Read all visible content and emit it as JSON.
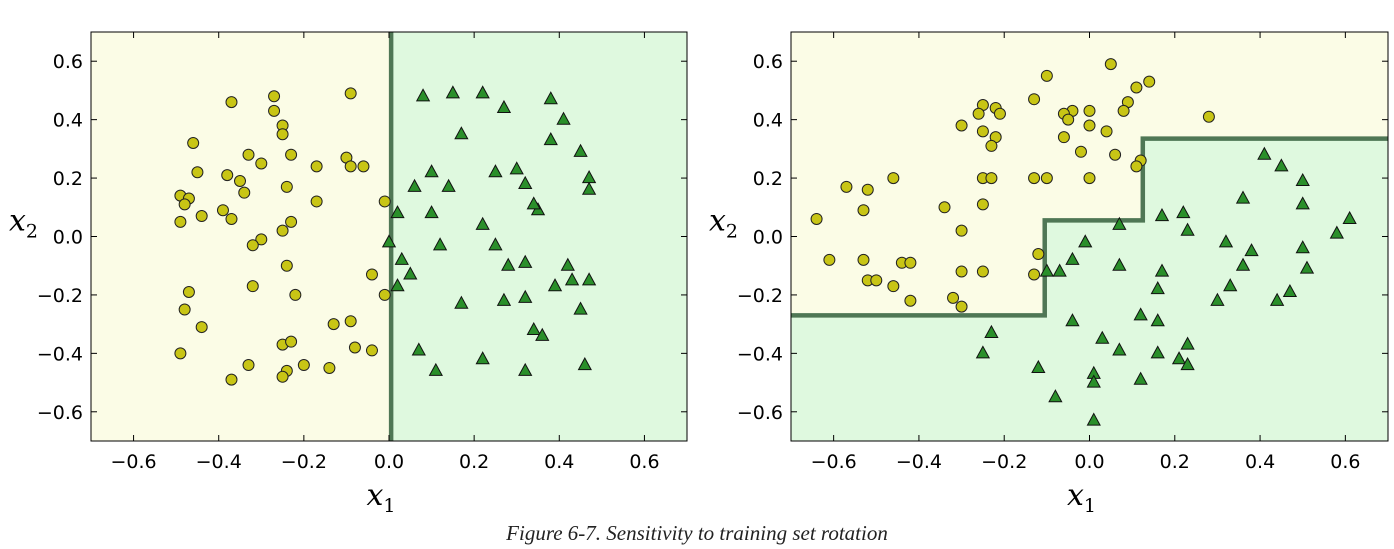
{
  "caption": "Figure 6-7. Sensitivity to training set rotation",
  "chart_data": [
    {
      "type": "scatter",
      "xlabel": "x1",
      "ylabel": "x2",
      "xlim": [
        -0.7,
        0.7
      ],
      "ylim": [
        -0.7,
        0.7
      ],
      "xticks": [
        "−0.6",
        "−0.4",
        "−0.2",
        "0.0",
        "0.2",
        "0.4",
        "0.6"
      ],
      "xtick_values": [
        -0.6,
        -0.4,
        -0.2,
        0.0,
        0.2,
        0.4,
        0.6
      ],
      "yticks": [
        "−0.6",
        "−0.4",
        "−0.2",
        "0.0",
        "0.2",
        "0.4",
        "0.6"
      ],
      "ytick_values": [
        -0.6,
        -0.4,
        -0.2,
        0.0,
        0.2,
        0.4,
        0.6
      ],
      "grid": false,
      "colors": {
        "region_a": "#fbfce6",
        "region_b": "#dff9df",
        "boundary": "#4f7755",
        "circle": "#c8c515",
        "triangle": "#2a8f2a"
      },
      "decision_boundary": [
        [
          0.005,
          -0.7
        ],
        [
          0.005,
          0.7
        ]
      ],
      "series": [
        {
          "marker": "circle",
          "points": [
            [
              -0.37,
              0.46
            ],
            [
              -0.27,
              0.48
            ],
            [
              -0.27,
              0.43
            ],
            [
              -0.09,
              0.49
            ],
            [
              -0.25,
              0.38
            ],
            [
              -0.25,
              0.35
            ],
            [
              -0.46,
              0.32
            ],
            [
              -0.33,
              0.28
            ],
            [
              -0.23,
              0.28
            ],
            [
              -0.1,
              0.27
            ],
            [
              -0.3,
              0.25
            ],
            [
              -0.17,
              0.24
            ],
            [
              -0.09,
              0.24
            ],
            [
              -0.06,
              0.24
            ],
            [
              -0.45,
              0.22
            ],
            [
              -0.38,
              0.21
            ],
            [
              -0.35,
              0.19
            ],
            [
              -0.24,
              0.17
            ],
            [
              -0.34,
              0.15
            ],
            [
              -0.49,
              0.14
            ],
            [
              -0.47,
              0.13
            ],
            [
              -0.48,
              0.11
            ],
            [
              -0.17,
              0.12
            ],
            [
              -0.01,
              0.12
            ],
            [
              -0.39,
              0.09
            ],
            [
              -0.44,
              0.07
            ],
            [
              -0.37,
              0.06
            ],
            [
              -0.49,
              0.05
            ],
            [
              -0.23,
              0.05
            ],
            [
              -0.25,
              0.02
            ],
            [
              -0.3,
              -0.01
            ],
            [
              -0.32,
              -0.03
            ],
            [
              -0.24,
              -0.1
            ],
            [
              -0.04,
              -0.13
            ],
            [
              -0.32,
              -0.17
            ],
            [
              -0.47,
              -0.19
            ],
            [
              -0.22,
              -0.2
            ],
            [
              -0.01,
              -0.2
            ],
            [
              -0.48,
              -0.25
            ],
            [
              -0.44,
              -0.31
            ],
            [
              -0.13,
              -0.3
            ],
            [
              -0.09,
              -0.29
            ],
            [
              -0.25,
              -0.37
            ],
            [
              -0.23,
              -0.36
            ],
            [
              -0.08,
              -0.38
            ],
            [
              -0.04,
              -0.39
            ],
            [
              -0.49,
              -0.4
            ],
            [
              -0.33,
              -0.44
            ],
            [
              -0.2,
              -0.44
            ],
            [
              -0.14,
              -0.45
            ],
            [
              -0.24,
              -0.46
            ],
            [
              -0.25,
              -0.48
            ],
            [
              -0.37,
              -0.49
            ]
          ]
        },
        {
          "marker": "triangle",
          "points": [
            [
              0.08,
              0.48
            ],
            [
              0.15,
              0.49
            ],
            [
              0.22,
              0.49
            ],
            [
              0.27,
              0.44
            ],
            [
              0.38,
              0.47
            ],
            [
              0.17,
              0.35
            ],
            [
              0.38,
              0.33
            ],
            [
              0.41,
              0.4
            ],
            [
              0.45,
              0.29
            ],
            [
              0.3,
              0.23
            ],
            [
              0.25,
              0.22
            ],
            [
              0.1,
              0.22
            ],
            [
              0.14,
              0.17
            ],
            [
              0.06,
              0.17
            ],
            [
              0.32,
              0.18
            ],
            [
              0.47,
              0.2
            ],
            [
              0.47,
              0.16
            ],
            [
              0.35,
              0.09
            ],
            [
              0.34,
              0.11
            ],
            [
              0.02,
              0.08
            ],
            [
              0.1,
              0.08
            ],
            [
              0.22,
              0.04
            ],
            [
              0.0,
              -0.02
            ],
            [
              0.12,
              -0.03
            ],
            [
              0.25,
              -0.03
            ],
            [
              0.03,
              -0.08
            ],
            [
              0.05,
              -0.13
            ],
            [
              0.02,
              -0.17
            ],
            [
              0.28,
              -0.1
            ],
            [
              0.32,
              -0.09
            ],
            [
              0.42,
              -0.1
            ],
            [
              0.43,
              -0.15
            ],
            [
              0.47,
              -0.15
            ],
            [
              0.39,
              -0.17
            ],
            [
              0.27,
              -0.22
            ],
            [
              0.32,
              -0.21
            ],
            [
              0.17,
              -0.23
            ],
            [
              0.45,
              -0.25
            ],
            [
              0.34,
              -0.32
            ],
            [
              0.36,
              -0.34
            ],
            [
              0.07,
              -0.39
            ],
            [
              0.22,
              -0.42
            ],
            [
              0.46,
              -0.44
            ],
            [
              0.11,
              -0.46
            ],
            [
              0.32,
              -0.46
            ]
          ]
        }
      ]
    },
    {
      "type": "scatter",
      "xlabel": "x1",
      "ylabel": "x2",
      "xlim": [
        -0.7,
        0.7
      ],
      "ylim": [
        -0.7,
        0.7
      ],
      "xticks": [
        "−0.6",
        "−0.4",
        "−0.2",
        "0.0",
        "0.2",
        "0.4",
        "0.6"
      ],
      "xtick_values": [
        -0.6,
        -0.4,
        -0.2,
        0.0,
        0.2,
        0.4,
        0.6
      ],
      "yticks": [
        "−0.6",
        "−0.4",
        "−0.2",
        "0.0",
        "0.2",
        "0.4",
        "0.6"
      ],
      "ytick_values": [
        -0.6,
        -0.4,
        -0.2,
        0.0,
        0.2,
        0.4,
        0.6
      ],
      "grid": false,
      "colors": {
        "region_a": "#fbfce6",
        "region_b": "#dff9df",
        "boundary": "#4f7755",
        "circle": "#c8c515",
        "triangle": "#2a8f2a"
      },
      "decision_boundary": [
        [
          -0.7,
          -0.27
        ],
        [
          -0.105,
          -0.27
        ],
        [
          -0.105,
          0.055
        ],
        [
          0.125,
          0.055
        ],
        [
          0.125,
          0.335
        ],
        [
          0.7,
          0.335
        ]
      ],
      "series": [
        {
          "marker": "circle",
          "points": [
            [
              0.05,
              0.59
            ],
            [
              -0.1,
              0.55
            ],
            [
              0.14,
              0.53
            ],
            [
              0.11,
              0.51
            ],
            [
              -0.25,
              0.45
            ],
            [
              0.09,
              0.46
            ],
            [
              -0.22,
              0.44
            ],
            [
              -0.26,
              0.42
            ],
            [
              -0.21,
              0.42
            ],
            [
              -0.13,
              0.47
            ],
            [
              -0.04,
              0.43
            ],
            [
              -0.06,
              0.42
            ],
            [
              -0.05,
              0.4
            ],
            [
              0.0,
              0.43
            ],
            [
              0.08,
              0.43
            ],
            [
              0.28,
              0.41
            ],
            [
              -0.3,
              0.38
            ],
            [
              -0.25,
              0.36
            ],
            [
              0.0,
              0.38
            ],
            [
              -0.06,
              0.34
            ],
            [
              -0.22,
              0.34
            ],
            [
              0.04,
              0.36
            ],
            [
              -0.23,
              0.31
            ],
            [
              -0.02,
              0.29
            ],
            [
              0.06,
              0.28
            ],
            [
              0.12,
              0.26
            ],
            [
              0.11,
              0.24
            ],
            [
              -0.25,
              0.2
            ],
            [
              -0.23,
              0.2
            ],
            [
              -0.13,
              0.2
            ],
            [
              -0.1,
              0.2
            ],
            [
              0.0,
              0.2
            ],
            [
              -0.46,
              0.2
            ],
            [
              -0.52,
              0.16
            ],
            [
              -0.57,
              0.17
            ],
            [
              -0.34,
              0.1
            ],
            [
              -0.25,
              0.11
            ],
            [
              -0.53,
              0.09
            ],
            [
              -0.64,
              0.06
            ],
            [
              -0.3,
              0.02
            ],
            [
              -0.61,
              -0.08
            ],
            [
              -0.53,
              -0.08
            ],
            [
              -0.44,
              -0.09
            ],
            [
              -0.42,
              -0.09
            ],
            [
              -0.3,
              -0.12
            ],
            [
              -0.25,
              -0.12
            ],
            [
              -0.52,
              -0.15
            ],
            [
              -0.5,
              -0.15
            ],
            [
              -0.46,
              -0.17
            ],
            [
              -0.13,
              -0.13
            ],
            [
              -0.12,
              -0.06
            ],
            [
              -0.42,
              -0.22
            ],
            [
              -0.32,
              -0.21
            ],
            [
              -0.3,
              -0.24
            ]
          ]
        },
        {
          "marker": "triangle",
          "points": [
            [
              0.41,
              0.28
            ],
            [
              0.45,
              0.24
            ],
            [
              0.5,
              0.19
            ],
            [
              0.36,
              0.13
            ],
            [
              0.5,
              0.11
            ],
            [
              0.61,
              0.06
            ],
            [
              0.58,
              0.01
            ],
            [
              0.17,
              0.07
            ],
            [
              0.22,
              0.08
            ],
            [
              0.23,
              0.02
            ],
            [
              0.07,
              0.04
            ],
            [
              0.32,
              -0.02
            ],
            [
              0.5,
              -0.04
            ],
            [
              0.38,
              -0.05
            ],
            [
              -0.01,
              -0.02
            ],
            [
              -0.04,
              -0.08
            ],
            [
              0.07,
              -0.1
            ],
            [
              0.36,
              -0.1
            ],
            [
              0.51,
              -0.11
            ],
            [
              -0.1,
              -0.12
            ],
            [
              -0.07,
              -0.12
            ],
            [
              0.17,
              -0.12
            ],
            [
              0.16,
              -0.18
            ],
            [
              0.33,
              -0.17
            ],
            [
              0.47,
              -0.19
            ],
            [
              0.3,
              -0.22
            ],
            [
              0.44,
              -0.22
            ],
            [
              0.12,
              -0.27
            ],
            [
              0.16,
              -0.29
            ],
            [
              -0.04,
              -0.29
            ],
            [
              0.03,
              -0.35
            ],
            [
              -0.23,
              -0.33
            ],
            [
              0.07,
              -0.39
            ],
            [
              0.16,
              -0.4
            ],
            [
              0.23,
              -0.37
            ],
            [
              0.21,
              -0.42
            ],
            [
              0.23,
              -0.44
            ],
            [
              -0.25,
              -0.4
            ],
            [
              -0.12,
              -0.45
            ],
            [
              0.01,
              -0.47
            ],
            [
              0.12,
              -0.49
            ],
            [
              0.01,
              -0.5
            ],
            [
              -0.08,
              -0.55
            ],
            [
              0.01,
              -0.63
            ]
          ]
        }
      ]
    }
  ]
}
